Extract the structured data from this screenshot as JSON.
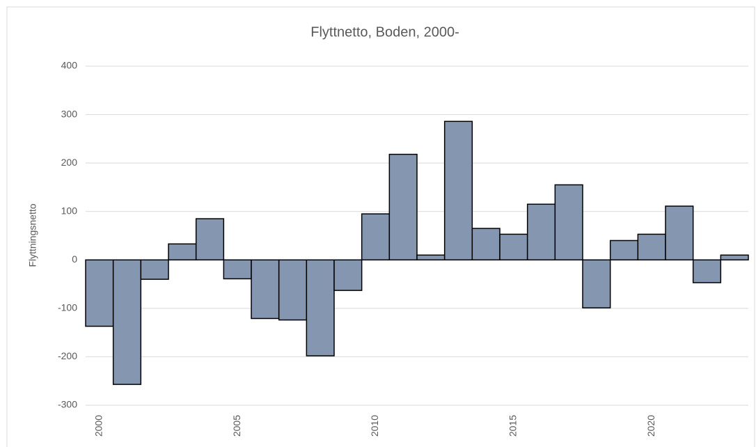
{
  "chart_data": {
    "type": "bar",
    "title": "Flyttnetto, Boden, 2000-",
    "y_label": "Flyttningsnetto",
    "categories": [
      "2000",
      null,
      null,
      null,
      null,
      "2005",
      null,
      null,
      null,
      null,
      "2010",
      null,
      null,
      null,
      null,
      "2015",
      null,
      null,
      null,
      null,
      "2020",
      null,
      null,
      null
    ],
    "values": [
      -137,
      -257,
      -40,
      33,
      85,
      -39,
      -121,
      -124,
      -198,
      -63,
      95,
      218,
      10,
      286,
      65,
      53,
      115,
      155,
      -99,
      40,
      53,
      111,
      -47,
      10
    ],
    "color": "#8496b0",
    "ylim": [
      -300,
      400
    ],
    "yticks": [
      -300,
      -200,
      -100,
      0,
      100,
      200,
      300,
      400
    ],
    "grid": true
  }
}
